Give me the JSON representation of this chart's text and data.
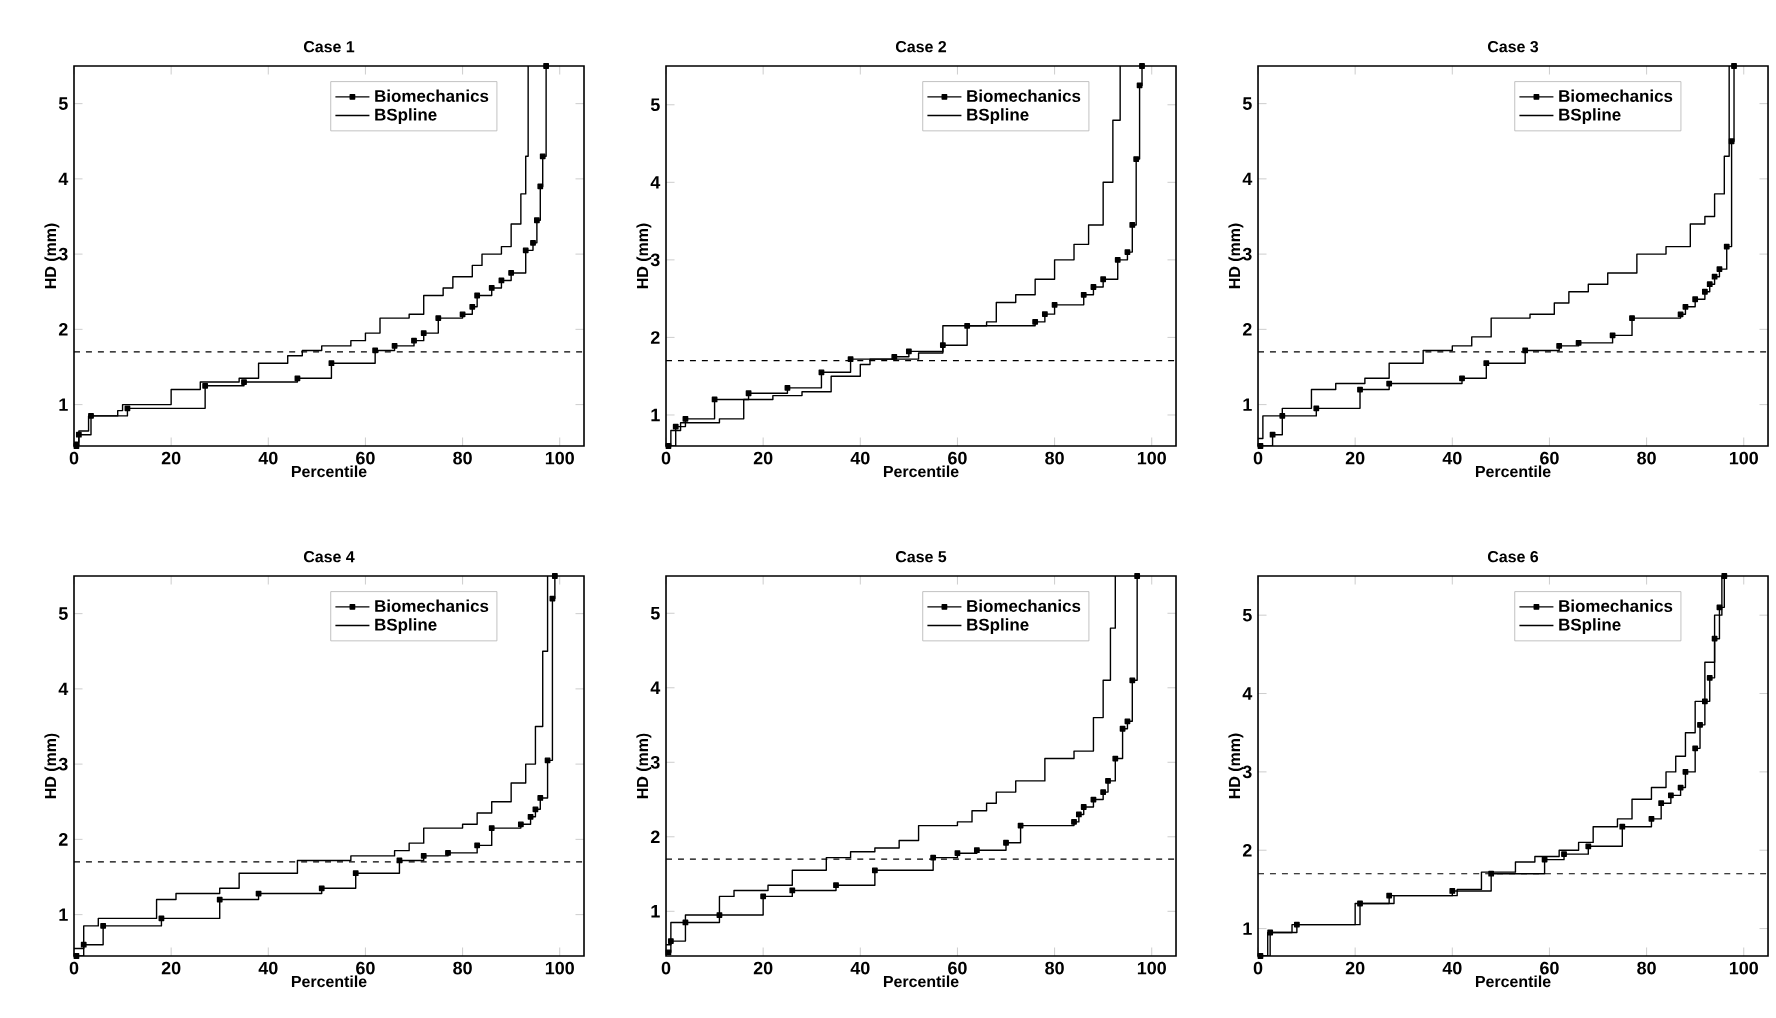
{
  "chart_data": [
    {
      "type": "step",
      "title": "Case 1",
      "xlabel": "Percentile",
      "ylabel": "HD (mm)",
      "xlim": [
        0,
        105
      ],
      "xticks": [
        0,
        20,
        40,
        60,
        80,
        100
      ],
      "ylim": [
        0.45,
        5.5
      ],
      "yticks": [
        1,
        2,
        3,
        4,
        5
      ],
      "legend": "top right",
      "grid": false,
      "ref_lines": [
        {
          "axis": "y",
          "value": 1.7,
          "line_style": "dashed",
          "color": "#000000"
        }
      ],
      "series": [
        {
          "name": "Biomechanics",
          "color": "#000000",
          "marker": "square",
          "x": [
            0.5,
            1,
            3.5,
            11,
            27,
            35,
            46,
            53,
            62,
            66,
            70,
            72,
            75,
            80,
            82,
            83,
            86,
            88,
            90,
            93,
            94.5,
            95.3,
            96,
            96.5,
            97.2
          ],
          "values": [
            0.45,
            0.6,
            0.85,
            0.95,
            1.25,
            1.3,
            1.35,
            1.55,
            1.72,
            1.78,
            1.85,
            1.95,
            2.15,
            2.2,
            2.3,
            2.45,
            2.55,
            2.65,
            2.75,
            3.05,
            3.15,
            3.45,
            3.9,
            4.3,
            5.5
          ]
        },
        {
          "name": "BSpline",
          "color": "#000000",
          "marker": "none",
          "x": [
            0,
            1,
            3,
            9,
            10,
            20,
            26,
            34,
            38,
            44,
            47,
            51,
            57,
            60,
            63,
            69,
            72,
            76,
            78,
            82,
            84,
            88,
            90,
            92,
            93,
            93.5
          ],
          "values": [
            0.5,
            0.65,
            0.85,
            0.92,
            1.0,
            1.2,
            1.3,
            1.35,
            1.55,
            1.65,
            1.72,
            1.78,
            1.85,
            1.95,
            2.15,
            2.2,
            2.45,
            2.55,
            2.7,
            2.85,
            3.0,
            3.1,
            3.4,
            3.8,
            4.3,
            5.5
          ]
        }
      ]
    },
    {
      "type": "step",
      "title": "Case 2",
      "xlabel": "Percentile",
      "ylabel": "HD (mm)",
      "xlim": [
        0,
        105
      ],
      "xticks": [
        0,
        20,
        40,
        60,
        80,
        100
      ],
      "ylim": [
        0.6,
        5.5
      ],
      "yticks": [
        1,
        2,
        3,
        4,
        5
      ],
      "legend": "top right",
      "grid": false,
      "ref_lines": [
        {
          "axis": "y",
          "value": 1.7,
          "line_style": "dashed",
          "color": "#000000"
        }
      ],
      "series": [
        {
          "name": "Biomechanics",
          "color": "#000000",
          "marker": "square",
          "x": [
            0.5,
            2,
            4,
            10,
            17,
            25,
            32,
            38,
            47,
            50,
            57,
            62,
            76,
            78,
            80,
            86,
            88,
            90,
            93,
            95,
            96,
            96.8,
            97.5,
            98
          ],
          "values": [
            0.6,
            0.85,
            0.95,
            1.2,
            1.28,
            1.35,
            1.55,
            1.72,
            1.75,
            1.82,
            1.9,
            2.15,
            2.2,
            2.3,
            2.42,
            2.55,
            2.65,
            2.75,
            3.0,
            3.1,
            3.45,
            4.3,
            5.25,
            5.5
          ]
        },
        {
          "name": "BSpline",
          "color": "#000000",
          "marker": "none",
          "x": [
            0,
            1,
            3,
            11,
            16,
            22,
            28,
            34,
            40,
            42,
            52,
            57,
            66,
            68,
            72,
            76,
            80,
            84,
            87,
            90,
            92,
            93.5
          ],
          "values": [
            0.6,
            0.8,
            0.9,
            0.95,
            1.2,
            1.25,
            1.3,
            1.5,
            1.65,
            1.72,
            1.8,
            2.15,
            2.2,
            2.45,
            2.55,
            2.75,
            3.0,
            3.2,
            3.45,
            4.0,
            4.8,
            5.5
          ]
        }
      ]
    },
    {
      "type": "step",
      "title": "Case 3",
      "xlabel": "Percentile",
      "ylabel": "HD (mm)",
      "xlim": [
        0,
        105
      ],
      "xticks": [
        0,
        20,
        40,
        60,
        80,
        100
      ],
      "ylim": [
        0.45,
        5.5
      ],
      "yticks": [
        1,
        2,
        3,
        4,
        5
      ],
      "legend": "top right",
      "grid": false,
      "ref_lines": [
        {
          "axis": "y",
          "value": 1.7,
          "line_style": "dashed",
          "color": "#000000"
        }
      ],
      "series": [
        {
          "name": "Biomechanics",
          "color": "#000000",
          "marker": "square",
          "x": [
            0.5,
            3,
            5,
            12,
            21,
            27,
            42,
            47,
            55,
            62,
            66,
            73,
            77,
            87,
            88,
            90,
            92,
            93,
            94,
            95,
            96.5,
            97.5,
            98
          ],
          "values": [
            0.45,
            0.6,
            0.85,
            0.95,
            1.2,
            1.28,
            1.35,
            1.55,
            1.72,
            1.78,
            1.82,
            1.92,
            2.15,
            2.2,
            2.3,
            2.4,
            2.5,
            2.6,
            2.7,
            2.8,
            3.1,
            4.5,
            5.5
          ]
        },
        {
          "name": "BSpline",
          "color": "#000000",
          "marker": "none",
          "x": [
            0,
            1,
            5,
            11,
            16,
            22,
            27,
            34,
            40,
            44,
            48,
            56,
            61,
            64,
            68,
            72,
            78,
            84,
            89,
            92,
            94,
            96,
            97
          ],
          "values": [
            0.55,
            0.85,
            0.95,
            1.2,
            1.28,
            1.35,
            1.55,
            1.72,
            1.78,
            1.9,
            2.15,
            2.2,
            2.35,
            2.5,
            2.6,
            2.75,
            3.0,
            3.1,
            3.4,
            3.5,
            3.8,
            4.3,
            5.5
          ]
        }
      ]
    },
    {
      "type": "step",
      "title": "Case 4",
      "xlabel": "Percentile",
      "ylabel": "HD (mm)",
      "xlim": [
        0,
        105
      ],
      "xticks": [
        0,
        20,
        40,
        60,
        80,
        100
      ],
      "ylim": [
        0.45,
        5.5
      ],
      "yticks": [
        1,
        2,
        3,
        4,
        5
      ],
      "legend": "top right",
      "grid": false,
      "ref_lines": [
        {
          "axis": "y",
          "value": 1.7,
          "line_style": "dashed",
          "color": "#000000"
        }
      ],
      "series": [
        {
          "name": "Biomechanics",
          "color": "#000000",
          "marker": "square",
          "x": [
            0.5,
            2,
            6,
            18,
            30,
            38,
            51,
            58,
            67,
            72,
            77,
            83,
            86,
            92,
            94,
            95,
            96,
            97.5,
            98.5,
            99
          ],
          "values": [
            0.45,
            0.6,
            0.85,
            0.95,
            1.2,
            1.28,
            1.35,
            1.55,
            1.72,
            1.78,
            1.82,
            1.92,
            2.15,
            2.2,
            2.3,
            2.4,
            2.55,
            3.05,
            5.2,
            5.5
          ]
        },
        {
          "name": "BSpline",
          "color": "#000000",
          "marker": "none",
          "x": [
            0,
            2,
            5,
            17,
            21,
            30,
            34,
            46,
            57,
            66,
            69,
            72,
            80,
            83,
            86,
            90,
            93,
            95,
            96.5,
            97.5
          ],
          "values": [
            0.55,
            0.85,
            0.95,
            1.2,
            1.28,
            1.35,
            1.55,
            1.72,
            1.78,
            1.85,
            1.95,
            2.15,
            2.2,
            2.35,
            2.5,
            2.75,
            3.0,
            3.5,
            4.5,
            5.5
          ]
        }
      ]
    },
    {
      "type": "step",
      "title": "Case 5",
      "xlabel": "Percentile",
      "ylabel": "HD (mm)",
      "xlim": [
        0,
        105
      ],
      "xticks": [
        0,
        20,
        40,
        60,
        80,
        100
      ],
      "ylim": [
        0.4,
        5.5
      ],
      "yticks": [
        1,
        2,
        3,
        4,
        5
      ],
      "legend": "top right",
      "grid": false,
      "ref_lines": [
        {
          "axis": "y",
          "value": 1.7,
          "line_style": "dashed",
          "color": "#000000"
        }
      ],
      "series": [
        {
          "name": "Biomechanics",
          "color": "#000000",
          "marker": "square",
          "x": [
            0.5,
            1,
            4,
            11,
            20,
            26,
            35,
            43,
            55,
            60,
            64,
            70,
            73,
            84,
            85,
            86,
            88,
            90,
            91,
            92.5,
            94,
            95,
            96,
            97
          ],
          "values": [
            0.45,
            0.6,
            0.85,
            0.95,
            1.2,
            1.28,
            1.35,
            1.55,
            1.72,
            1.78,
            1.82,
            1.92,
            2.15,
            2.2,
            2.3,
            2.4,
            2.5,
            2.6,
            2.75,
            3.05,
            3.45,
            3.55,
            4.1,
            5.5
          ]
        },
        {
          "name": "BSpline",
          "color": "#000000",
          "marker": "none",
          "x": [
            0,
            1,
            4,
            11,
            14,
            21,
            26,
            33,
            38,
            43,
            48,
            52,
            60,
            63,
            66,
            68,
            72,
            78,
            84,
            88,
            90,
            91.5,
            92.5
          ],
          "values": [
            0.55,
            0.85,
            0.95,
            1.2,
            1.28,
            1.35,
            1.55,
            1.72,
            1.8,
            1.85,
            1.95,
            2.15,
            2.2,
            2.35,
            2.45,
            2.6,
            2.75,
            3.05,
            3.15,
            3.6,
            4.1,
            4.8,
            5.5
          ]
        }
      ]
    },
    {
      "type": "step",
      "title": "Case 6",
      "xlabel": "Percentile",
      "ylabel": "HD (mm)",
      "xlim": [
        0,
        105
      ],
      "xticks": [
        0,
        20,
        40,
        60,
        80,
        100
      ],
      "ylim": [
        0.65,
        5.5
      ],
      "yticks": [
        1,
        2,
        3,
        4,
        5
      ],
      "legend": "top right",
      "grid": false,
      "ref_lines": [
        {
          "axis": "y",
          "value": 1.7,
          "line_style": "dashed",
          "color": "#000000"
        }
      ],
      "series": [
        {
          "name": "Biomechanics",
          "color": "#000000",
          "marker": "square",
          "x": [
            0.5,
            2.5,
            8,
            21,
            27,
            40,
            48,
            59,
            63,
            68,
            75,
            81,
            83,
            85,
            87,
            88,
            90,
            91,
            92,
            93,
            94,
            95,
            96
          ],
          "values": [
            0.65,
            0.95,
            1.05,
            1.32,
            1.42,
            1.48,
            1.7,
            1.88,
            1.95,
            2.05,
            2.3,
            2.4,
            2.6,
            2.7,
            2.8,
            3.0,
            3.3,
            3.6,
            3.9,
            4.2,
            4.7,
            5.1,
            5.5
          ]
        },
        {
          "name": "BSpline",
          "color": "#000000",
          "marker": "none",
          "x": [
            0,
            2,
            7,
            20,
            28,
            41,
            46,
            53,
            57,
            62,
            66,
            69,
            74,
            77,
            81,
            84,
            86,
            88,
            90,
            92,
            94,
            95.5
          ],
          "values": [
            0.65,
            0.95,
            1.05,
            1.32,
            1.42,
            1.5,
            1.72,
            1.85,
            1.92,
            2.0,
            2.1,
            2.3,
            2.4,
            2.65,
            2.8,
            3.0,
            3.2,
            3.5,
            3.9,
            4.4,
            5.0,
            5.5
          ]
        }
      ]
    }
  ]
}
